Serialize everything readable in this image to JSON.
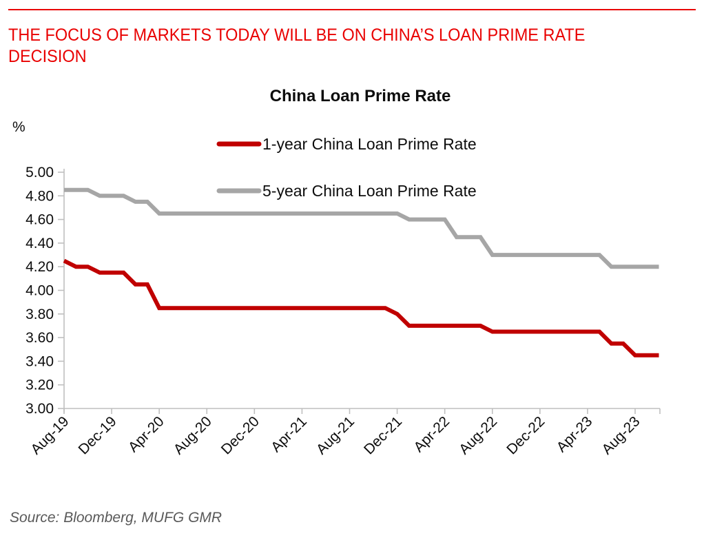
{
  "page": {
    "headline_line1": "THE FOCUS OF MARKETS TODAY WILL BE ON CHINA’S LOAN PRIME RATE",
    "headline_line2": "DECISION"
  },
  "source_note": "Source: Bloomberg, MUFG GMR",
  "colors": {
    "headline_red": "#e90000",
    "series_1y_red": "#c00000",
    "series_5y_gray": "#a6a6a6",
    "axis_gray": "#bfbfbf",
    "source_text_gray": "#595959"
  },
  "chart_data": {
    "type": "line",
    "title": "China Loan Prime Rate",
    "y_unit_label": "%",
    "xlabel": "",
    "ylabel": "%",
    "ylim": [
      3.0,
      5.0
    ],
    "grid": false,
    "legend_position": "top-center-stacked",
    "yticks": [
      "5.00",
      "4.80",
      "4.60",
      "4.40",
      "4.20",
      "4.00",
      "3.80",
      "3.60",
      "3.40",
      "3.20",
      "3.00"
    ],
    "xtick_labels": [
      "Aug-19",
      "Dec-19",
      "Apr-20",
      "Aug-20",
      "Dec-20",
      "Apr-21",
      "Aug-21",
      "Dec-21",
      "Apr-22",
      "Aug-22",
      "Dec-22",
      "Apr-23",
      "Aug-23"
    ],
    "xtick_month_index": [
      0,
      4,
      8,
      12,
      16,
      20,
      24,
      28,
      32,
      36,
      40,
      44,
      48
    ],
    "x_months": [
      "Aug-19",
      "Sep-19",
      "Oct-19",
      "Nov-19",
      "Dec-19",
      "Jan-20",
      "Feb-20",
      "Mar-20",
      "Apr-20",
      "May-20",
      "Jun-20",
      "Jul-20",
      "Aug-20",
      "Sep-20",
      "Oct-20",
      "Nov-20",
      "Dec-20",
      "Jan-21",
      "Feb-21",
      "Mar-21",
      "Apr-21",
      "May-21",
      "Jun-21",
      "Jul-21",
      "Aug-21",
      "Sep-21",
      "Oct-21",
      "Nov-21",
      "Dec-21",
      "Jan-22",
      "Feb-22",
      "Mar-22",
      "Apr-22",
      "May-22",
      "Jun-22",
      "Jul-22",
      "Aug-22",
      "Sep-22",
      "Oct-22",
      "Nov-22",
      "Dec-22",
      "Jan-23",
      "Feb-23",
      "Mar-23",
      "Apr-23",
      "May-23",
      "Jun-23",
      "Jul-23",
      "Aug-23",
      "Sep-23",
      "Oct-23"
    ],
    "series": [
      {
        "name": "1-year China Loan Prime Rate",
        "color": "#c00000",
        "values": [
          4.25,
          4.2,
          4.2,
          4.15,
          4.15,
          4.15,
          4.05,
          4.05,
          3.85,
          3.85,
          3.85,
          3.85,
          3.85,
          3.85,
          3.85,
          3.85,
          3.85,
          3.85,
          3.85,
          3.85,
          3.85,
          3.85,
          3.85,
          3.85,
          3.85,
          3.85,
          3.85,
          3.85,
          3.8,
          3.7,
          3.7,
          3.7,
          3.7,
          3.7,
          3.7,
          3.7,
          3.65,
          3.65,
          3.65,
          3.65,
          3.65,
          3.65,
          3.65,
          3.65,
          3.65,
          3.65,
          3.55,
          3.55,
          3.45,
          3.45,
          3.45
        ]
      },
      {
        "name": "5-year China Loan Prime Rate",
        "color": "#a6a6a6",
        "values": [
          4.85,
          4.85,
          4.85,
          4.8,
          4.8,
          4.8,
          4.75,
          4.75,
          4.65,
          4.65,
          4.65,
          4.65,
          4.65,
          4.65,
          4.65,
          4.65,
          4.65,
          4.65,
          4.65,
          4.65,
          4.65,
          4.65,
          4.65,
          4.65,
          4.65,
          4.65,
          4.65,
          4.65,
          4.65,
          4.6,
          4.6,
          4.6,
          4.6,
          4.45,
          4.45,
          4.45,
          4.3,
          4.3,
          4.3,
          4.3,
          4.3,
          4.3,
          4.3,
          4.3,
          4.3,
          4.3,
          4.2,
          4.2,
          4.2,
          4.2,
          4.2
        ]
      }
    ]
  }
}
